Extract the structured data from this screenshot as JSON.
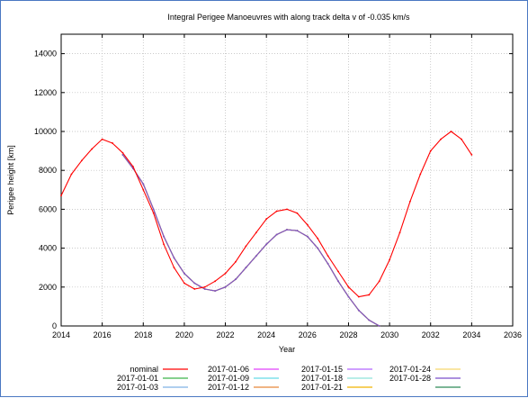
{
  "chart_data": {
    "type": "line",
    "title": "Integral Perigee Manoeuvres with along track delta v of -0.035 km/s",
    "xlabel": "Year",
    "ylabel": "Perigee height [km]",
    "xlim": [
      2014,
      2036
    ],
    "ylim": [
      0,
      15000
    ],
    "xticks": [
      2014,
      2016,
      2018,
      2020,
      2022,
      2024,
      2026,
      2028,
      2030,
      2032,
      2034,
      2036
    ],
    "yticks": [
      0,
      2000,
      4000,
      6000,
      8000,
      10000,
      12000,
      14000
    ],
    "grid": true,
    "legend_position": "bottom",
    "series": [
      {
        "name": "nominal",
        "color": "#ff0000",
        "x": [
          2014.0,
          2014.5,
          2015.0,
          2015.5,
          2016.0,
          2016.5,
          2017.0,
          2017.5,
          2018.0,
          2018.5,
          2019.0,
          2019.5,
          2020.0,
          2020.5,
          2021.0,
          2021.5,
          2022.0,
          2022.5,
          2023.0,
          2023.5,
          2024.0,
          2024.5,
          2025.0,
          2025.5,
          2026.0,
          2026.5,
          2027.0,
          2027.5,
          2028.0,
          2028.5,
          2029.0,
          2029.5,
          2030.0,
          2030.5,
          2031.0,
          2031.5,
          2032.0,
          2032.5,
          2033.0,
          2033.5,
          2034.0
        ],
        "y": [
          6700,
          7800,
          8500,
          9100,
          9600,
          9400,
          8900,
          8200,
          7000,
          5800,
          4200,
          3000,
          2200,
          1900,
          2000,
          2300,
          2700,
          3300,
          4100,
          4800,
          5500,
          5900,
          6000,
          5800,
          5200,
          4500,
          3600,
          2800,
          2000,
          1500,
          1600,
          2300,
          3400,
          4800,
          6400,
          7800,
          9000,
          9600,
          10000,
          9600,
          8800
        ]
      },
      {
        "name": "2017-01-01",
        "color": "#3cb44b",
        "x": [
          2017.0,
          2017.5,
          2018.0,
          2018.5,
          2019.0,
          2019.5,
          2020.0,
          2020.5,
          2021.0,
          2021.5,
          2022.0,
          2022.5,
          2023.0,
          2023.5,
          2024.0,
          2024.5,
          2025.0,
          2025.5,
          2026.0,
          2026.5,
          2027.0,
          2027.5,
          2028.0,
          2028.5,
          2029.0,
          2029.5
        ],
        "y": [
          8800,
          8100,
          7300,
          6000,
          4600,
          3500,
          2700,
          2200,
          1900,
          1800,
          2000,
          2400,
          3000,
          3600,
          4200,
          4700,
          4950,
          4900,
          4600,
          4000,
          3200,
          2300,
          1500,
          800,
          300,
          0
        ]
      },
      {
        "name": "2017-01-03",
        "color": "#7fb2e5",
        "x": [
          2017.0,
          2017.5,
          2018.0,
          2018.5,
          2019.0,
          2019.5,
          2020.0,
          2020.5,
          2021.0,
          2021.5,
          2022.0,
          2022.5,
          2023.0,
          2023.5,
          2024.0,
          2024.5,
          2025.0,
          2025.5,
          2026.0,
          2026.5,
          2027.0,
          2027.5,
          2028.0,
          2028.5,
          2029.0,
          2029.5
        ],
        "y": [
          8800,
          8100,
          7300,
          6000,
          4600,
          3500,
          2700,
          2200,
          1900,
          1800,
          2000,
          2400,
          3000,
          3600,
          4200,
          4700,
          4950,
          4900,
          4600,
          4000,
          3200,
          2300,
          1500,
          800,
          300,
          0
        ]
      },
      {
        "name": "2017-01-06",
        "color": "#e040fb",
        "x": [
          2017.0,
          2017.5,
          2018.0,
          2018.5,
          2019.0,
          2019.5,
          2020.0,
          2020.5,
          2021.0,
          2021.5,
          2022.0,
          2022.5,
          2023.0,
          2023.5,
          2024.0,
          2024.5,
          2025.0,
          2025.5,
          2026.0,
          2026.5,
          2027.0,
          2027.5,
          2028.0,
          2028.5,
          2029.0,
          2029.5
        ],
        "y": [
          8800,
          8100,
          7300,
          6000,
          4600,
          3500,
          2700,
          2200,
          1900,
          1800,
          2000,
          2400,
          3000,
          3600,
          4200,
          4700,
          4950,
          4900,
          4600,
          4000,
          3200,
          2300,
          1500,
          800,
          300,
          0
        ]
      },
      {
        "name": "2017-01-09",
        "color": "#66d9e8",
        "x": [
          2017.0,
          2017.5,
          2018.0,
          2018.5,
          2019.0,
          2019.5,
          2020.0,
          2020.5,
          2021.0,
          2021.5,
          2022.0,
          2022.5,
          2023.0,
          2023.5,
          2024.0,
          2024.5,
          2025.0,
          2025.5,
          2026.0,
          2026.5,
          2027.0,
          2027.5,
          2028.0,
          2028.5,
          2029.0,
          2029.5
        ],
        "y": [
          8800,
          8100,
          7300,
          6000,
          4600,
          3500,
          2700,
          2200,
          1900,
          1800,
          2000,
          2400,
          3000,
          3600,
          4200,
          4700,
          4950,
          4900,
          4600,
          4000,
          3200,
          2300,
          1500,
          800,
          300,
          0
        ]
      },
      {
        "name": "2017-01-12",
        "color": "#e8873a",
        "x": [
          2017.0,
          2017.5,
          2018.0,
          2018.5,
          2019.0,
          2019.5,
          2020.0,
          2020.5,
          2021.0,
          2021.5,
          2022.0,
          2022.5,
          2023.0,
          2023.5,
          2024.0,
          2024.5,
          2025.0,
          2025.5,
          2026.0,
          2026.5,
          2027.0,
          2027.5,
          2028.0,
          2028.5,
          2029.0,
          2029.5
        ],
        "y": [
          8800,
          8100,
          7300,
          6000,
          4600,
          3500,
          2700,
          2200,
          1900,
          1800,
          2000,
          2400,
          3000,
          3600,
          4200,
          4700,
          4950,
          4900,
          4600,
          4000,
          3200,
          2300,
          1500,
          800,
          300,
          0
        ]
      },
      {
        "name": "2017-01-15",
        "color": "#b266ff",
        "x": [
          2017.0,
          2017.5,
          2018.0,
          2018.5,
          2019.0,
          2019.5,
          2020.0,
          2020.5,
          2021.0,
          2021.5,
          2022.0,
          2022.5,
          2023.0,
          2023.5,
          2024.0,
          2024.5,
          2025.0,
          2025.5,
          2026.0,
          2026.5,
          2027.0,
          2027.5,
          2028.0,
          2028.5,
          2029.0,
          2029.5
        ],
        "y": [
          8800,
          8100,
          7300,
          6000,
          4600,
          3500,
          2700,
          2200,
          1900,
          1800,
          2000,
          2400,
          3000,
          3600,
          4200,
          4700,
          4950,
          4900,
          4600,
          4000,
          3200,
          2300,
          1500,
          800,
          300,
          0
        ]
      },
      {
        "name": "2017-01-18",
        "color": "#8fe3d9",
        "x": [
          2017.0,
          2017.5,
          2018.0,
          2018.5,
          2019.0,
          2019.5,
          2020.0,
          2020.5,
          2021.0,
          2021.5,
          2022.0,
          2022.5,
          2023.0,
          2023.5,
          2024.0,
          2024.5,
          2025.0,
          2025.5,
          2026.0,
          2026.5,
          2027.0,
          2027.5,
          2028.0,
          2028.5,
          2029.0,
          2029.5
        ],
        "y": [
          8800,
          8100,
          7300,
          6000,
          4600,
          3500,
          2700,
          2200,
          1900,
          1800,
          2000,
          2400,
          3000,
          3600,
          4200,
          4700,
          4950,
          4900,
          4600,
          4000,
          3200,
          2300,
          1500,
          800,
          300,
          0
        ]
      },
      {
        "name": "2017-01-21",
        "color": "#f0b400",
        "x": [
          2017.0,
          2017.5,
          2018.0,
          2018.5,
          2019.0,
          2019.5,
          2020.0,
          2020.5,
          2021.0,
          2021.5,
          2022.0,
          2022.5,
          2023.0,
          2023.5,
          2024.0,
          2024.5,
          2025.0,
          2025.5,
          2026.0,
          2026.5,
          2027.0,
          2027.5,
          2028.0,
          2028.5,
          2029.0,
          2029.5
        ],
        "y": [
          8800,
          8100,
          7300,
          6000,
          4600,
          3500,
          2700,
          2200,
          1900,
          1800,
          2000,
          2400,
          3000,
          3600,
          4200,
          4700,
          4950,
          4900,
          4600,
          4000,
          3200,
          2300,
          1500,
          800,
          300,
          0
        ]
      },
      {
        "name": "2017-01-24",
        "color": "#f5d76e",
        "x": [
          2017.0,
          2017.5,
          2018.0,
          2018.5,
          2019.0,
          2019.5,
          2020.0,
          2020.5,
          2021.0,
          2021.5,
          2022.0,
          2022.5,
          2023.0,
          2023.5,
          2024.0,
          2024.5,
          2025.0,
          2025.5,
          2026.0,
          2026.5,
          2027.0,
          2027.5,
          2028.0,
          2028.5,
          2029.0,
          2029.5
        ],
        "y": [
          8800,
          8100,
          7300,
          6000,
          4600,
          3500,
          2700,
          2200,
          1900,
          1800,
          2000,
          2400,
          3000,
          3600,
          4200,
          4700,
          4950,
          4900,
          4600,
          4000,
          3200,
          2300,
          1500,
          800,
          300,
          0
        ]
      },
      {
        "name": "2017-01-28",
        "color": "#7b4fc9",
        "x": [
          2017.0,
          2017.5,
          2018.0,
          2018.5,
          2019.0,
          2019.5,
          2020.0,
          2020.5,
          2021.0,
          2021.5,
          2022.0,
          2022.5,
          2023.0,
          2023.5,
          2024.0,
          2024.5,
          2025.0,
          2025.5,
          2026.0,
          2026.5,
          2027.0,
          2027.5,
          2028.0,
          2028.5,
          2029.0,
          2029.5
        ],
        "y": [
          8800,
          8100,
          7300,
          6000,
          4600,
          3500,
          2700,
          2200,
          1900,
          1800,
          2000,
          2400,
          3000,
          3600,
          4200,
          4700,
          4950,
          4900,
          4600,
          4000,
          3200,
          2300,
          1500,
          800,
          300,
          0
        ]
      },
      {
        "name": "",
        "color": "#2e8b57",
        "x": [],
        "y": []
      },
      {
        "name": "",
        "color": "#d9a0e6",
        "x": [],
        "y": []
      }
    ]
  }
}
